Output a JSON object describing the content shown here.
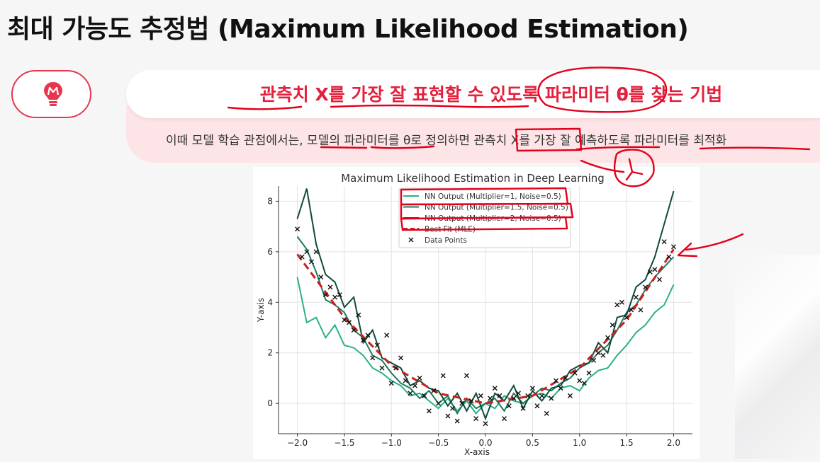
{
  "slide": {
    "title": "최대 가능도 추정법 (Maximum Likelihood Estimation)",
    "headline": "관측치 X를 가장 잘 표현할 수 있도록 파라미터 θ를 찾는 기법",
    "subline": "이때 모델 학습 관점에서는, 모델의 파라미터를 θ로 정의하면 관측치 X를 가장 잘 예측하도록 파라미터를 최적화"
  },
  "icon": {
    "name": "lightbulb-icon",
    "color": "#e8364f",
    "letter": "M"
  },
  "annotations": {
    "color": "#e3001b"
  },
  "chart_data": {
    "type": "line",
    "title": "Maximum Likelihood Estimation in Deep Learning",
    "xlabel": "X-axis",
    "ylabel": "Y-axis",
    "xlim": [
      -2.2,
      2.2
    ],
    "ylim": [
      -1.2,
      8.6
    ],
    "xticks": [
      -2.0,
      -1.5,
      -1.0,
      -0.5,
      0.0,
      0.5,
      1.0,
      1.5,
      2.0
    ],
    "xtick_labels": [
      "−2.0",
      "−1.5",
      "−1.0",
      "−0.5",
      "0.0",
      "0.5",
      "1.0",
      "1.5",
      "2.0"
    ],
    "yticks": [
      0,
      2,
      4,
      6,
      8
    ],
    "grid": true,
    "legend_position": "upper-center",
    "series": [
      {
        "name": "NN Output (Multiplier=1, Noise=0.5)",
        "color": "#2bb08a",
        "multiplier": 1,
        "noise": 0.5
      },
      {
        "name": "NN Output (Multiplier=1.5, Noise=0.5)",
        "color": "#1f7a5e",
        "multiplier": 1.5,
        "noise": 0.5
      },
      {
        "name": "NN Output (Multiplier=2, Noise=0.5)",
        "color": "#114a3a",
        "multiplier": 2,
        "noise": 0.5
      },
      {
        "name": "Best Fit (MLE)",
        "color": "#cc1f1f",
        "style": "dashed"
      },
      {
        "name": "Data Points",
        "color": "#111111",
        "marker": "x"
      }
    ],
    "best_fit": {
      "x": [
        -2.0,
        -1.5,
        -1.0,
        -0.5,
        0.0,
        0.5,
        1.0,
        1.5,
        2.0
      ],
      "y": [
        5.9,
        3.4,
        1.5,
        0.4,
        0.0,
        0.3,
        1.4,
        3.3,
        6.1
      ]
    },
    "data_points": {
      "x": [
        -2.0,
        -1.95,
        -1.9,
        -1.85,
        -1.8,
        -1.75,
        -1.7,
        -1.65,
        -1.6,
        -1.55,
        -1.5,
        -1.45,
        -1.4,
        -1.35,
        -1.3,
        -1.25,
        -1.2,
        -1.15,
        -1.1,
        -1.05,
        -1.0,
        -0.95,
        -0.9,
        -0.85,
        -0.8,
        -0.75,
        -0.7,
        -0.65,
        -0.6,
        -0.55,
        -0.5,
        -0.45,
        -0.4,
        -0.35,
        -0.3,
        -0.25,
        -0.2,
        -0.15,
        -0.1,
        -0.05,
        0.0,
        0.05,
        0.1,
        0.15,
        0.2,
        0.25,
        0.3,
        0.35,
        0.4,
        0.45,
        0.5,
        0.55,
        0.6,
        0.65,
        0.7,
        0.75,
        0.8,
        0.85,
        0.9,
        0.95,
        1.0,
        1.05,
        1.1,
        1.15,
        1.2,
        1.25,
        1.3,
        1.35,
        1.4,
        1.45,
        1.5,
        1.55,
        1.6,
        1.65,
        1.7,
        1.75,
        1.8,
        1.85,
        1.9,
        1.95,
        2.0
      ],
      "y": [
        6.9,
        5.8,
        6.0,
        5.6,
        6.0,
        5.0,
        4.3,
        4.6,
        4.2,
        4.3,
        3.3,
        3.2,
        2.9,
        3.5,
        2.5,
        2.7,
        1.8,
        2.3,
        1.4,
        2.7,
        0.8,
        1.4,
        1.8,
        0.9,
        0.4,
        0.7,
        1.0,
        0.3,
        -0.3,
        0.5,
        0.0,
        1.1,
        -0.5,
        -0.2,
        -0.7,
        0.0,
        1.1,
        0.1,
        -0.6,
        0.3,
        -0.8,
        0.2,
        0.6,
        0.3,
        -0.6,
        -0.1,
        0.2,
        0.4,
        -0.2,
        0.3,
        0.6,
        -0.1,
        0.3,
        -0.4,
        0.2,
        0.9,
        0.6,
        1.0,
        0.3,
        1.2,
        0.9,
        0.8,
        1.2,
        1.7,
        2.0,
        1.9,
        2.6,
        3.1,
        3.9,
        4.0,
        3.4,
        3.7,
        4.2,
        3.7,
        4.6,
        5.2,
        5.3,
        4.9,
        6.4,
        5.8,
        6.2
      ]
    },
    "nn_outputs": {
      "x": [
        -2.0,
        -1.9,
        -1.8,
        -1.7,
        -1.6,
        -1.5,
        -1.4,
        -1.3,
        -1.2,
        -1.1,
        -1.0,
        -0.9,
        -0.8,
        -0.7,
        -0.6,
        -0.5,
        -0.4,
        -0.3,
        -0.2,
        -0.1,
        0.0,
        0.1,
        0.2,
        0.3,
        0.4,
        0.5,
        0.6,
        0.7,
        0.8,
        0.9,
        1.0,
        1.1,
        1.2,
        1.3,
        1.4,
        1.5,
        1.6,
        1.7,
        1.8,
        1.9,
        2.0
      ],
      "y": [
        [
          5.0,
          3.2,
          3.4,
          2.6,
          3.1,
          2.3,
          2.2,
          1.9,
          1.4,
          1.2,
          0.9,
          0.7,
          0.3,
          0.4,
          0.1,
          -0.2,
          0.2,
          -0.3,
          0.1,
          -0.4,
          0.0,
          -0.2,
          0.3,
          0.1,
          0.0,
          0.3,
          0.4,
          0.2,
          0.6,
          0.7,
          0.5,
          1.0,
          1.3,
          1.4,
          1.9,
          2.3,
          2.8,
          3.1,
          3.6,
          3.9,
          4.7
        ],
        [
          6.6,
          6.1,
          5.2,
          4.1,
          3.9,
          3.6,
          2.9,
          2.6,
          1.9,
          1.7,
          1.2,
          0.8,
          0.6,
          0.2,
          0.5,
          0.0,
          0.3,
          -0.4,
          0.2,
          -0.2,
          0.0,
          0.2,
          -0.3,
          0.4,
          0.0,
          0.3,
          0.6,
          0.5,
          0.8,
          1.0,
          1.4,
          1.6,
          2.0,
          2.3,
          2.9,
          3.6,
          3.9,
          4.5,
          5.0,
          5.4,
          5.8
        ],
        [
          7.3,
          8.5,
          6.3,
          5.1,
          4.8,
          3.8,
          4.2,
          2.4,
          2.9,
          1.8,
          1.6,
          1.4,
          0.7,
          0.9,
          0.6,
          0.5,
          -0.1,
          0.4,
          -0.3,
          0.4,
          -0.6,
          0.4,
          0.1,
          0.7,
          -0.2,
          0.5,
          0.1,
          0.6,
          0.7,
          1.3,
          1.5,
          1.6,
          2.4,
          2.0,
          3.4,
          3.5,
          4.6,
          4.9,
          5.8,
          7.1,
          8.4
        ]
      ]
    }
  }
}
